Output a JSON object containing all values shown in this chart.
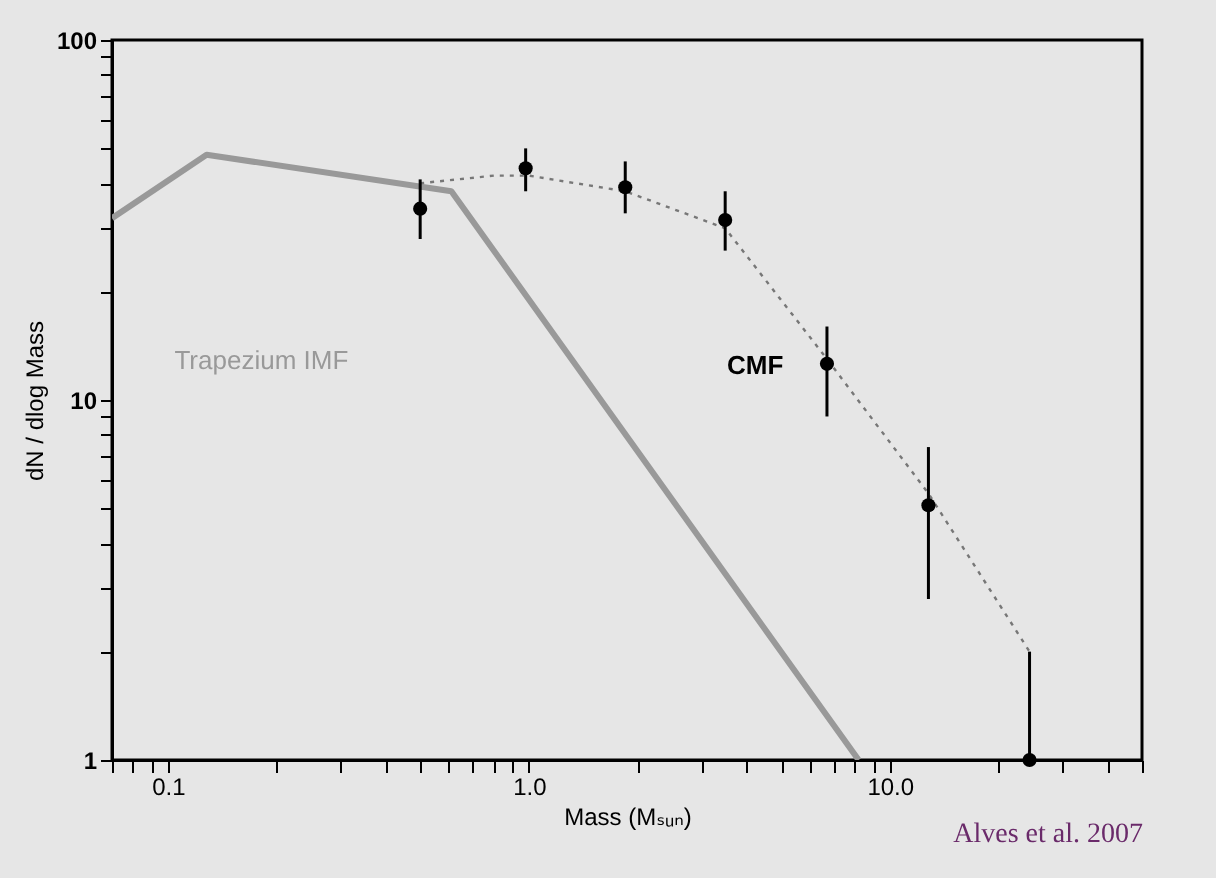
{
  "chart_data": {
    "type": "line",
    "xlabel": "Mass (Mₛᵤₙ)",
    "ylabel": "dN / dlog Mass",
    "log": "xy",
    "grid": false,
    "legend": false,
    "xlim": [
      0.07,
      50
    ],
    "ylim": [
      1,
      100
    ],
    "xticks": [
      {
        "value": 0.07,
        "label": null
      },
      {
        "value": 0.08,
        "label": null
      },
      {
        "value": 0.09,
        "label": null
      },
      {
        "value": 0.1,
        "label": "0.1"
      },
      {
        "value": 0.2,
        "label": null
      },
      {
        "value": 0.3,
        "label": null
      },
      {
        "value": 0.4,
        "label": null
      },
      {
        "value": 0.5,
        "label": null
      },
      {
        "value": 0.6,
        "label": null
      },
      {
        "value": 0.7,
        "label": null
      },
      {
        "value": 0.8,
        "label": null
      },
      {
        "value": 0.9,
        "label": null
      },
      {
        "value": 1,
        "label": "1.0"
      },
      {
        "value": 2,
        "label": null
      },
      {
        "value": 3,
        "label": null
      },
      {
        "value": 4,
        "label": null
      },
      {
        "value": 5,
        "label": null
      },
      {
        "value": 6,
        "label": null
      },
      {
        "value": 7,
        "label": null
      },
      {
        "value": 8,
        "label": null
      },
      {
        "value": 9,
        "label": null
      },
      {
        "value": 10,
        "label": "10.0"
      },
      {
        "value": 20,
        "label": null
      },
      {
        "value": 30,
        "label": null
      },
      {
        "value": 40,
        "label": null
      },
      {
        "value": 50,
        "label": null
      }
    ],
    "yticks": [
      1,
      {
        "value": 2,
        "label": null
      },
      {
        "value": 3,
        "label": null
      },
      {
        "value": 4,
        "label": null
      },
      {
        "value": 5,
        "label": null
      },
      {
        "value": 6,
        "label": null
      },
      {
        "value": 7,
        "label": null
      },
      {
        "value": 8,
        "label": null
      },
      {
        "value": 9,
        "label": null
      },
      10,
      {
        "value": 20,
        "label": null
      },
      {
        "value": 30,
        "label": null
      },
      {
        "value": 40,
        "label": null
      },
      {
        "value": 50,
        "label": null
      },
      {
        "value": 60,
        "label": null
      },
      {
        "value": 70,
        "label": null
      },
      {
        "value": 80,
        "label": null
      },
      {
        "value": 90,
        "label": null
      },
      100
    ],
    "series": [
      {
        "name": "Trapezium IMF",
        "color": "#999999",
        "line_style": "solid",
        "x": [
          0.07,
          0.128,
          0.61,
          8.2
        ],
        "values": [
          32,
          48,
          38,
          1
        ]
      },
      {
        "color": "#777777",
        "line_style": "dotted",
        "x": [
          0.5,
          0.8,
          1.0,
          1.85,
          3.5,
          6.7,
          12.8,
          24.4
        ],
        "values": [
          40,
          42,
          42,
          38,
          30,
          13,
          5.5,
          2
        ]
      },
      {
        "name": "CMF",
        "type": "scatter",
        "color": "#000000",
        "marker": "circle",
        "x": [
          0.5,
          0.98,
          1.85,
          3.5,
          6.7,
          12.8,
          24.4
        ],
        "values": [
          34,
          44,
          39,
          31.6,
          12.6,
          5.1,
          1
        ],
        "errors": [
          [
            28,
            41
          ],
          [
            38,
            50
          ],
          [
            33,
            46
          ],
          [
            26,
            38
          ],
          [
            9,
            16
          ],
          [
            2.8,
            7.4
          ],
          [
            1,
            2
          ]
        ]
      }
    ],
    "annotations": [
      "Alves et al. 2007"
    ]
  }
}
